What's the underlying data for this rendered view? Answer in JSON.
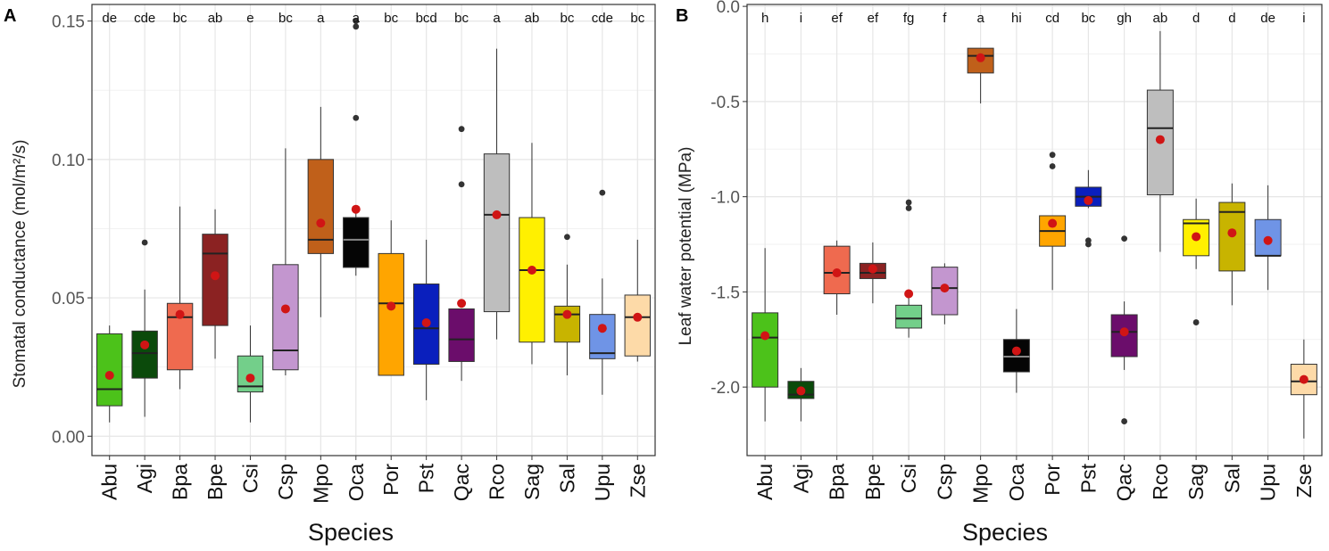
{
  "colors": {
    "Abu": "#4cc21a",
    "Agi": "#0b4a0b",
    "Bpa": "#ef6a4f",
    "Bpe": "#8b2222",
    "Csi": "#73cf8a",
    "Csp": "#c396cf",
    "Mpo": "#c0601a",
    "Oca": "#050505",
    "Por": "#ffa500",
    "Pst": "#0a1fbd",
    "Qac": "#6b0d6b",
    "Rco": "#bebebe",
    "Sag": "#fff000",
    "Sal": "#c8b400",
    "Upu": "#6f94e6",
    "Zse": "#fddaa8",
    "mean": "#d01515",
    "outlier": "#333333",
    "grid": "#e6e6e6",
    "box_line": "#333333"
  },
  "chart_data": [
    {
      "panel": "A",
      "type": "boxplot",
      "xlabel": "Species",
      "ylabel": "Stomatal conductance (mol/m²/s)",
      "ylim": [
        -0.007,
        0.156
      ],
      "yticks": [
        0.0,
        0.05,
        0.1,
        0.15
      ],
      "ytick_labels": [
        "0.00",
        "0.05",
        "0.10",
        "0.15"
      ],
      "categories": [
        "Abu",
        "Agi",
        "Bpa",
        "Bpe",
        "Csi",
        "Csp",
        "Mpo",
        "Oca",
        "Por",
        "Pst",
        "Qac",
        "Rco",
        "Sag",
        "Sal",
        "Upu",
        "Zse"
      ],
      "letters": [
        "de",
        "cde",
        "bc",
        "ab",
        "e",
        "bc",
        "a",
        "a",
        "bc",
        "bcd",
        "bc",
        "a",
        "ab",
        "bc",
        "cde",
        "bc"
      ],
      "boxes": [
        {
          "lw": 0.005,
          "q1": 0.011,
          "median": 0.017,
          "q3": 0.037,
          "uw": 0.04,
          "mean": 0.022,
          "outliers": []
        },
        {
          "lw": 0.007,
          "q1": 0.021,
          "median": 0.03,
          "q3": 0.038,
          "uw": 0.053,
          "mean": 0.033,
          "outliers": [
            0.07
          ]
        },
        {
          "lw": 0.017,
          "q1": 0.024,
          "median": 0.043,
          "q3": 0.048,
          "uw": 0.083,
          "mean": 0.044,
          "outliers": []
        },
        {
          "lw": 0.028,
          "q1": 0.04,
          "median": 0.066,
          "q3": 0.073,
          "uw": 0.082,
          "mean": 0.058,
          "outliers": []
        },
        {
          "lw": 0.005,
          "q1": 0.016,
          "median": 0.018,
          "q3": 0.029,
          "uw": 0.04,
          "mean": 0.021,
          "outliers": []
        },
        {
          "lw": 0.022,
          "q1": 0.024,
          "median": 0.031,
          "q3": 0.062,
          "uw": 0.104,
          "mean": 0.046,
          "outliers": []
        },
        {
          "lw": 0.043,
          "q1": 0.066,
          "median": 0.071,
          "q3": 0.1,
          "uw": 0.119,
          "mean": 0.077,
          "outliers": []
        },
        {
          "lw": 0.058,
          "q1": 0.061,
          "median": 0.071,
          "q3": 0.079,
          "uw": 0.082,
          "mean": 0.082,
          "outliers": [
            0.115,
            0.148,
            0.15
          ]
        },
        {
          "lw": 0.022,
          "q1": 0.022,
          "median": 0.048,
          "q3": 0.066,
          "uw": 0.078,
          "mean": 0.047,
          "outliers": []
        },
        {
          "lw": 0.013,
          "q1": 0.026,
          "median": 0.039,
          "q3": 0.055,
          "uw": 0.071,
          "mean": 0.041,
          "outliers": []
        },
        {
          "lw": 0.02,
          "q1": 0.027,
          "median": 0.035,
          "q3": 0.046,
          "uw": 0.046,
          "mean": 0.048,
          "outliers": [
            0.091,
            0.111
          ]
        },
        {
          "lw": 0.035,
          "q1": 0.045,
          "median": 0.08,
          "q3": 0.102,
          "uw": 0.14,
          "mean": 0.08,
          "outliers": []
        },
        {
          "lw": 0.026,
          "q1": 0.034,
          "median": 0.06,
          "q3": 0.079,
          "uw": 0.106,
          "mean": 0.06,
          "outliers": []
        },
        {
          "lw": 0.022,
          "q1": 0.034,
          "median": 0.044,
          "q3": 0.047,
          "uw": 0.062,
          "mean": 0.044,
          "outliers": [
            0.072
          ]
        },
        {
          "lw": 0.015,
          "q1": 0.028,
          "median": 0.03,
          "q3": 0.044,
          "uw": 0.057,
          "mean": 0.039,
          "outliers": [
            0.088
          ]
        },
        {
          "lw": 0.027,
          "q1": 0.029,
          "median": 0.043,
          "q3": 0.051,
          "uw": 0.071,
          "mean": 0.043,
          "outliers": []
        }
      ]
    },
    {
      "panel": "B",
      "type": "boxplot",
      "xlabel": "Species",
      "ylabel": "Leaf water potential (MPa)",
      "ylim": [
        -2.36,
        0.01
      ],
      "yticks": [
        0.0,
        -0.5,
        -1.0,
        -1.5,
        -2.0
      ],
      "ytick_labels": [
        "0.0",
        "-0.5",
        "-1.0",
        "-1.5",
        "-2.0"
      ],
      "categories": [
        "Abu",
        "Agi",
        "Bpa",
        "Bpe",
        "Csi",
        "Csp",
        "Mpo",
        "Oca",
        "Por",
        "Pst",
        "Qac",
        "Rco",
        "Sag",
        "Sal",
        "Upu",
        "Zse"
      ],
      "letters": [
        "h",
        "i",
        "ef",
        "ef",
        "fg",
        "f",
        "a",
        "hi",
        "cd",
        "bc",
        "gh",
        "ab",
        "d",
        "d",
        "de",
        "i"
      ],
      "boxes": [
        {
          "lw": -2.18,
          "q1": -2.0,
          "median": -1.74,
          "q3": -1.61,
          "uw": -1.27,
          "mean": -1.73,
          "outliers": []
        },
        {
          "lw": -2.18,
          "q1": -2.06,
          "median": -2.04,
          "q3": -1.97,
          "uw": -1.9,
          "mean": -2.02,
          "outliers": []
        },
        {
          "lw": -1.62,
          "q1": -1.51,
          "median": -1.4,
          "q3": -1.26,
          "uw": -1.23,
          "mean": -1.4,
          "outliers": []
        },
        {
          "lw": -1.56,
          "q1": -1.43,
          "median": -1.4,
          "q3": -1.35,
          "uw": -1.24,
          "mean": -1.38,
          "outliers": []
        },
        {
          "lw": -1.74,
          "q1": -1.69,
          "median": -1.64,
          "q3": -1.57,
          "uw": -1.51,
          "mean": -1.51,
          "outliers": [
            -1.03,
            -1.06
          ]
        },
        {
          "lw": -1.67,
          "q1": -1.62,
          "median": -1.48,
          "q3": -1.37,
          "uw": -1.35,
          "mean": -1.48,
          "outliers": []
        },
        {
          "lw": -0.51,
          "q1": -0.35,
          "median": -0.26,
          "q3": -0.22,
          "uw": -0.22,
          "mean": -0.27,
          "outliers": []
        },
        {
          "lw": -2.03,
          "q1": -1.92,
          "median": -1.84,
          "q3": -1.75,
          "uw": -1.59,
          "mean": -1.81,
          "outliers": []
        },
        {
          "lw": -1.49,
          "q1": -1.26,
          "median": -1.18,
          "q3": -1.1,
          "uw": -1.1,
          "mean": -1.14,
          "outliers": [
            -0.78,
            -0.84
          ]
        },
        {
          "lw": -1.06,
          "q1": -1.05,
          "median": -1.0,
          "q3": -0.95,
          "uw": -0.86,
          "mean": -1.02,
          "outliers": [
            -1.23,
            -1.25
          ]
        },
        {
          "lw": -1.91,
          "q1": -1.84,
          "median": -1.71,
          "q3": -1.62,
          "uw": -1.55,
          "mean": -1.71,
          "outliers": [
            -1.22,
            -2.18
          ]
        },
        {
          "lw": -1.29,
          "q1": -0.99,
          "median": -0.64,
          "q3": -0.44,
          "uw": -0.13,
          "mean": -0.7,
          "outliers": []
        },
        {
          "lw": -1.38,
          "q1": -1.31,
          "median": -1.14,
          "q3": -1.12,
          "uw": -1.01,
          "mean": -1.21,
          "outliers": [
            -1.66
          ]
        },
        {
          "lw": -1.57,
          "q1": -1.39,
          "median": -1.08,
          "q3": -1.03,
          "uw": -0.93,
          "mean": -1.19,
          "outliers": []
        },
        {
          "lw": -1.49,
          "q1": -1.31,
          "median": -1.31,
          "q3": -1.12,
          "uw": -0.94,
          "mean": -1.23,
          "outliers": []
        },
        {
          "lw": -2.27,
          "q1": -2.04,
          "median": -1.97,
          "q3": -1.88,
          "uw": -1.75,
          "mean": -1.96,
          "outliers": []
        }
      ]
    }
  ]
}
